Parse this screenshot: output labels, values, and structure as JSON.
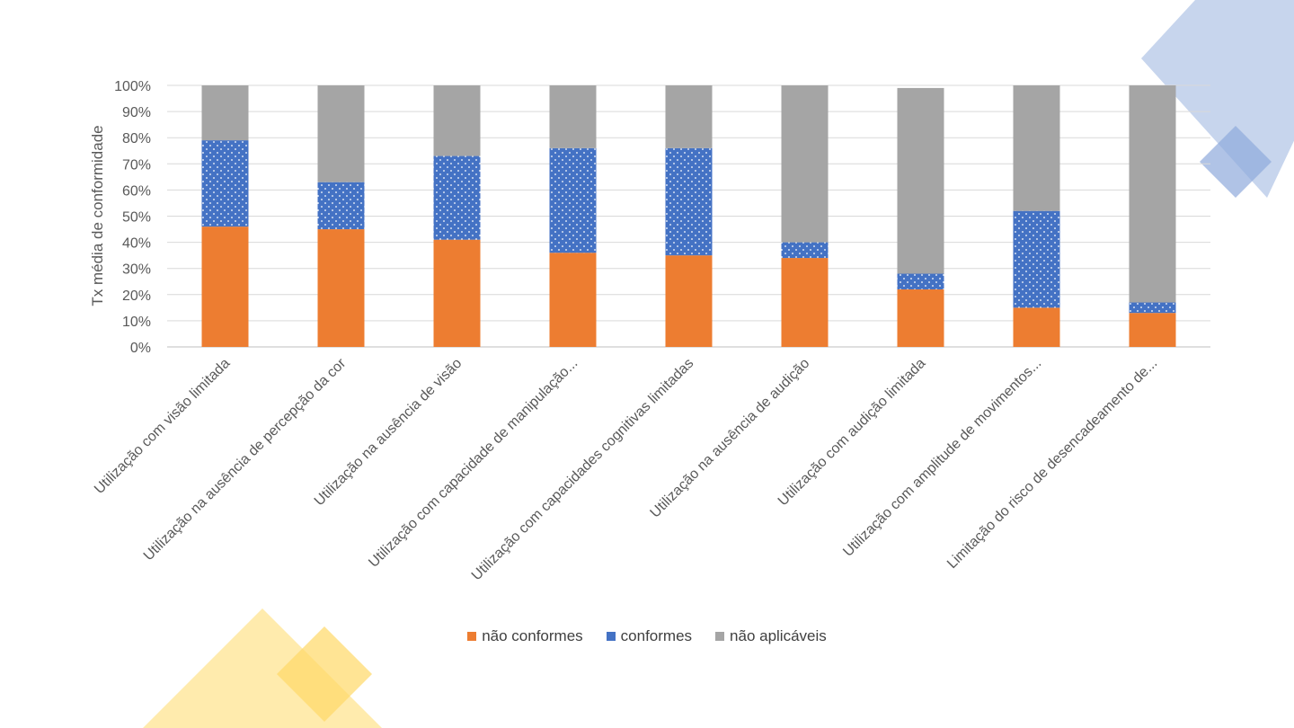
{
  "colors": {
    "non_conformant": "#ED7D31",
    "conformant": "#4472C4",
    "not_applicable": "#A5A5A5",
    "deco_blue": "#B4C7E7",
    "deco_blue_dark": "#8FAADC",
    "deco_yellow": "#FFE699",
    "deco_yellow_dark": "#FFD966"
  },
  "chart_data": {
    "type": "bar",
    "stacked": true,
    "title": "",
    "xlabel": "",
    "ylabel": "Tx média de conformidade",
    "ylim": [
      0,
      100
    ],
    "yticks": [
      "0%",
      "10%",
      "20%",
      "30%",
      "40%",
      "50%",
      "60%",
      "70%",
      "80%",
      "90%",
      "100%"
    ],
    "grid": true,
    "legend_position": "bottom",
    "categories": [
      "Utilização com visão limitada",
      "Utilização na ausência de percepção da cor",
      "Utilização na ausência de visão",
      "Utilização com capacidade de manipulação...",
      "Utilização com capacidades cognitivas limitadas",
      "Utilização na ausência de audição",
      "Utilização com audição limitada",
      "Utilização com amplitude de movimentos...",
      "Limitação do risco de desencadeamento de..."
    ],
    "series": [
      {
        "name": "não conformes",
        "color": "#ED7D31",
        "values": [
          46,
          45,
          41,
          36,
          35,
          34,
          22,
          15,
          13
        ]
      },
      {
        "name": "conformes",
        "color": "#4472C4",
        "pattern": "dots",
        "values": [
          33,
          18,
          32,
          40,
          41,
          6,
          6,
          37,
          4
        ]
      },
      {
        "name": "não aplicáveis",
        "color": "#A5A5A5",
        "values": [
          21,
          37,
          27,
          24,
          24,
          60,
          71,
          48,
          83
        ]
      }
    ]
  }
}
